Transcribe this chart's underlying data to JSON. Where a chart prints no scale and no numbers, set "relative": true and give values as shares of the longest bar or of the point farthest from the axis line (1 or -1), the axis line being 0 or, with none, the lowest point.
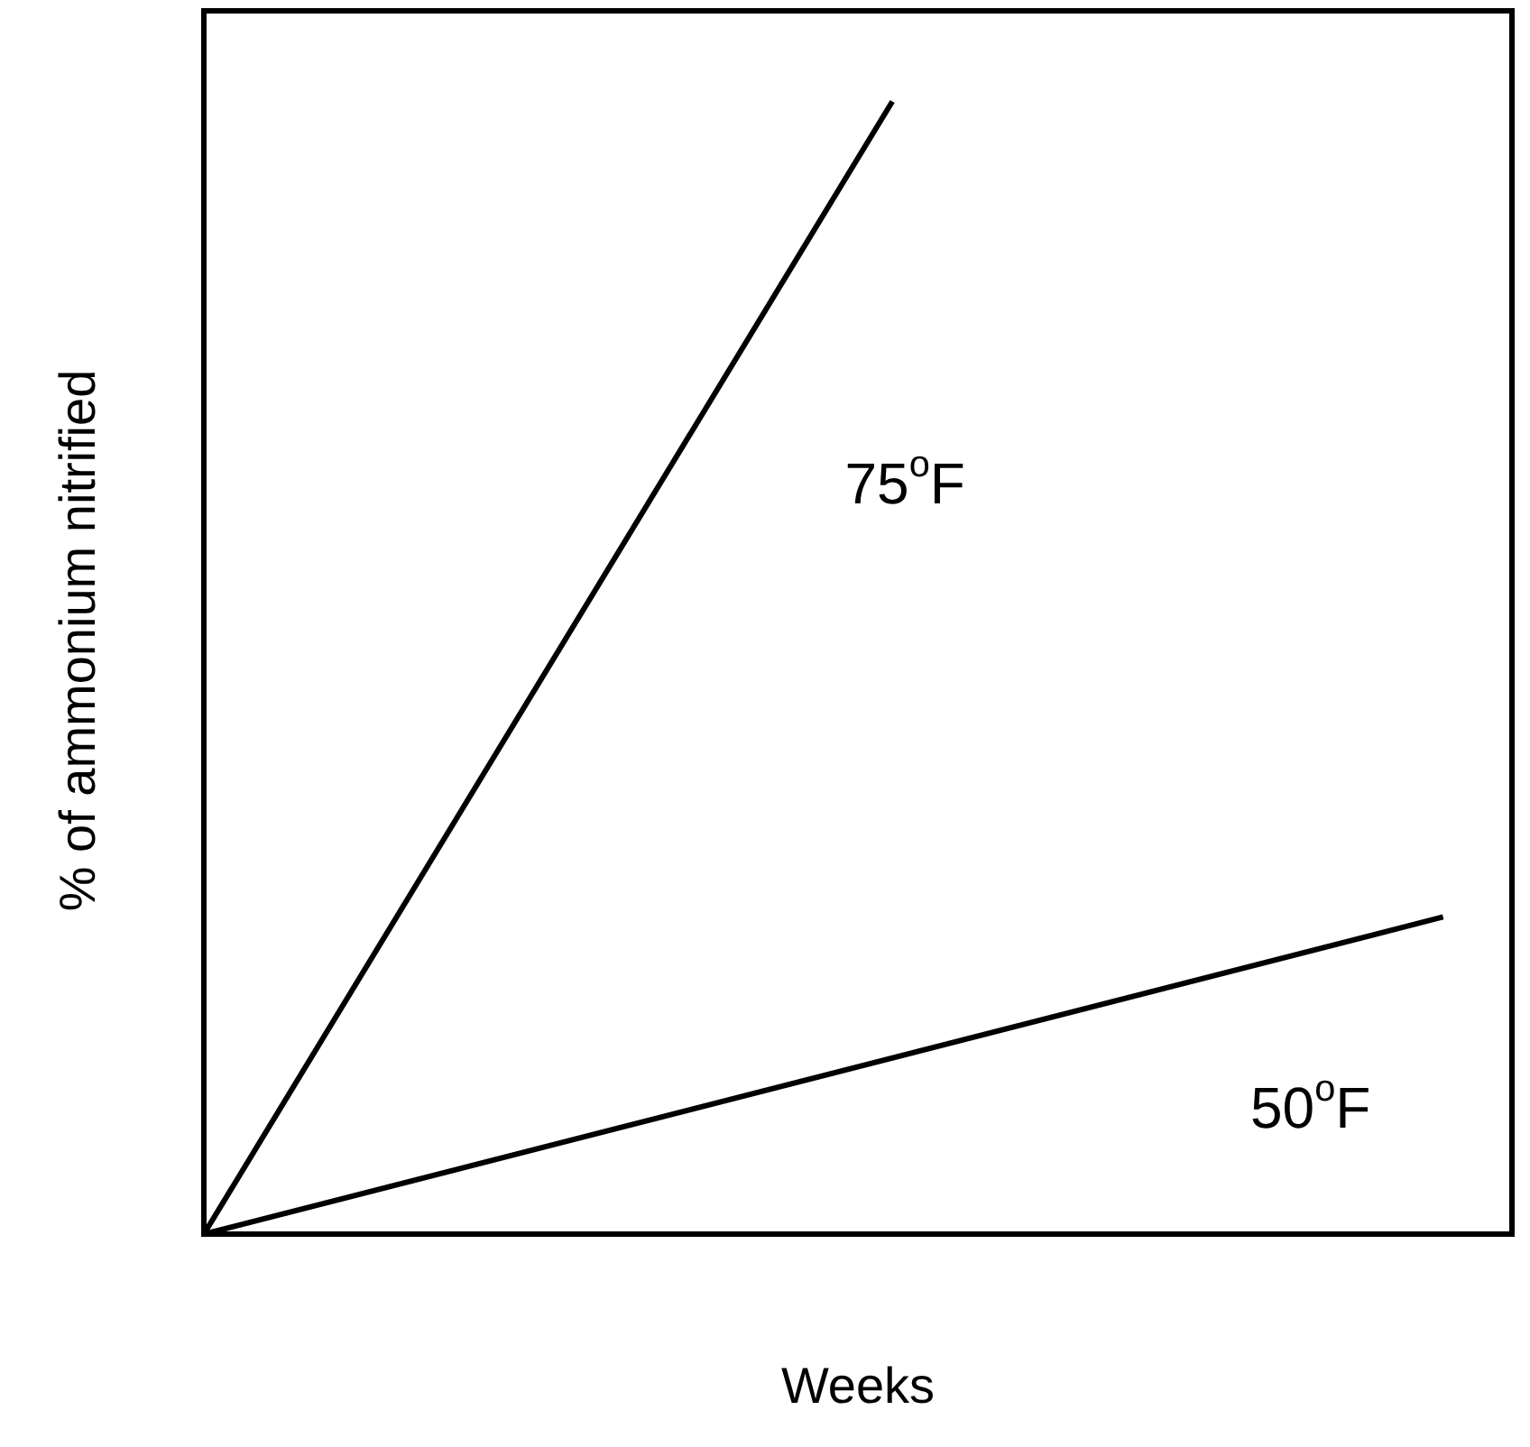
{
  "chart_data": {
    "type": "line",
    "relative": true,
    "xlabel": "Weeks",
    "ylabel": "% of ammonium nitrified",
    "categories": [
      null,
      null,
      null,
      null,
      null,
      null,
      null,
      null,
      null,
      null,
      null,
      null,
      null,
      null,
      null,
      null,
      null,
      null,
      null,
      null
    ],
    "series": [
      {
        "name": "75$^{o}$F",
        "color": "#000000",
        "values": [
          0,
          null,
          null,
          null,
          null,
          null,
          null,
          null,
          null,
          null,
          1,
          null,
          null,
          null,
          null,
          null,
          null,
          null,
          null,
          null
        ]
      },
      {
        "name": "50$^{o}$F",
        "color": "#000000",
        "values": [
          0,
          null,
          null,
          null,
          null,
          null,
          null,
          null,
          null,
          null,
          null,
          null,
          null,
          null,
          null,
          null,
          null,
          null,
          0.28,
          null
        ]
      }
    ],
    "grid": false,
    "legend": false,
    "marker": "none",
    "line_style": "solid"
  }
}
